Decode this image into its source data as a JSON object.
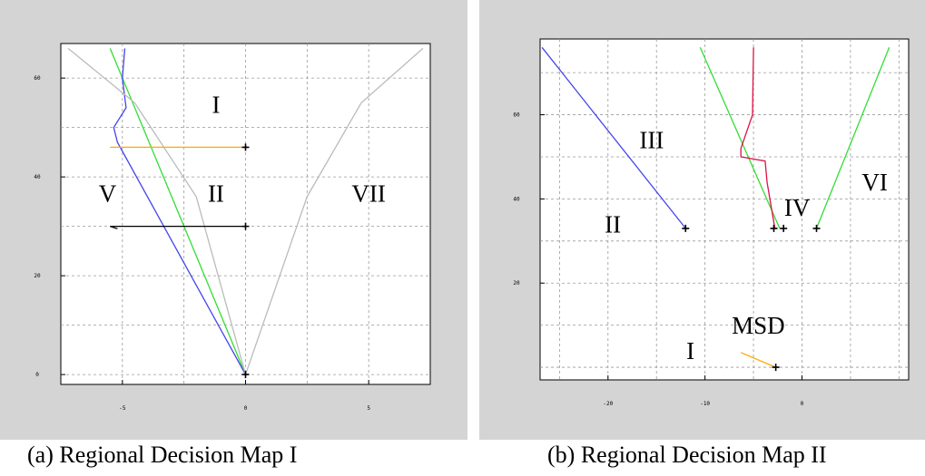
{
  "chart_data": [
    {
      "type": "line",
      "caption": "(a) Regional Decision Map I",
      "xlim": [
        -7.5,
        7.5
      ],
      "ylim": [
        -2,
        67
      ],
      "x_ticks": [
        {
          "v": -5,
          "label": "-5"
        },
        {
          "v": 0,
          "label": "0"
        },
        {
          "v": 5,
          "label": "5"
        }
      ],
      "y_ticks": [
        {
          "v": 0,
          "label": "0"
        },
        {
          "v": 20,
          "label": "20"
        },
        {
          "v": 40,
          "label": "40"
        },
        {
          "v": 60,
          "label": "60"
        }
      ],
      "grid": true,
      "series": [
        {
          "color": "#33dd33",
          "points": [
            [
              -5.5,
              66
            ],
            [
              0,
              0
            ]
          ]
        },
        {
          "color": "#4444ee",
          "points": [
            [
              -4.9,
              66
            ],
            [
              -5.0,
              60
            ],
            [
              -4.85,
              54
            ],
            [
              -5.1,
              52
            ],
            [
              -5.35,
              50
            ],
            [
              -5.2,
              47
            ],
            [
              0,
              0
            ]
          ]
        },
        {
          "color": "#bbbbbb",
          "points": [
            [
              -7.2,
              66
            ],
            [
              -4.5,
              55
            ],
            [
              -2.0,
              36
            ],
            [
              0,
              0
            ],
            [
              2.5,
              36
            ],
            [
              4.7,
              55
            ],
            [
              7.2,
              66
            ]
          ]
        },
        {
          "color": "#ffaa00",
          "points": [
            [
              -5.5,
              46
            ],
            [
              0,
              46
            ]
          ]
        },
        {
          "color": "#000000",
          "points": [
            [
              -5.2,
              29.5
            ],
            [
              -5.5,
              30
            ],
            [
              0,
              30
            ]
          ]
        }
      ],
      "markers": [
        [
          0,
          46
        ],
        [
          0,
          30
        ],
        [
          0,
          0
        ]
      ],
      "regions": [
        {
          "label": "I",
          "x": -1.2,
          "y": 53
        },
        {
          "label": "II",
          "x": -1.2,
          "y": 35
        },
        {
          "label": "V",
          "x": -5.6,
          "y": 35
        },
        {
          "label": "VII",
          "x": 5.0,
          "y": 35
        }
      ]
    },
    {
      "type": "line",
      "caption": "(b) Regional Decision Map II",
      "xlim": [
        -27,
        11
      ],
      "ylim": [
        -3,
        78
      ],
      "x_ticks": [
        {
          "v": -20,
          "label": "-20"
        },
        {
          "v": -10,
          "label": "-10"
        },
        {
          "v": 0,
          "label": "0"
        }
      ],
      "y_ticks": [
        {
          "v": 20,
          "label": "20"
        },
        {
          "v": 40,
          "label": "40"
        },
        {
          "v": 60,
          "label": "60"
        }
      ],
      "grid": true,
      "series": [
        {
          "color": "#4444ee",
          "points": [
            [
              -26.8,
              76
            ],
            [
              -12,
              33
            ]
          ]
        },
        {
          "color": "#33dd33",
          "points": [
            [
              -10.5,
              76
            ],
            [
              -2.3,
              33
            ]
          ]
        },
        {
          "color": "#33dd33",
          "points": [
            [
              1.5,
              33
            ],
            [
              9,
              76
            ]
          ]
        },
        {
          "color": "#dd1144",
          "points": [
            [
              -5,
              76
            ],
            [
              -5.1,
              60
            ],
            [
              -6.3,
              52
            ],
            [
              -6.3,
              50
            ],
            [
              -3.8,
              49
            ],
            [
              -3.6,
              44
            ],
            [
              -2.8,
              33
            ]
          ]
        },
        {
          "color": "#ffaa00",
          "points": [
            [
              -6.3,
              3.5
            ],
            [
              -2.7,
              0
            ]
          ]
        }
      ],
      "markers": [
        [
          -12,
          33
        ],
        [
          -2.9,
          33
        ],
        [
          -1.9,
          33
        ],
        [
          1.5,
          33
        ],
        [
          -2.7,
          0
        ]
      ],
      "regions": [
        {
          "label": "III",
          "x": -15.5,
          "y": 52
        },
        {
          "label": "II",
          "x": -19.5,
          "y": 32
        },
        {
          "label": "IV",
          "x": -0.5,
          "y": 36
        },
        {
          "label": "VI",
          "x": 7.5,
          "y": 42
        },
        {
          "label": "MSD",
          "x": -4.5,
          "y": 8
        },
        {
          "label": "I",
          "x": -11.5,
          "y": 2
        }
      ]
    }
  ]
}
